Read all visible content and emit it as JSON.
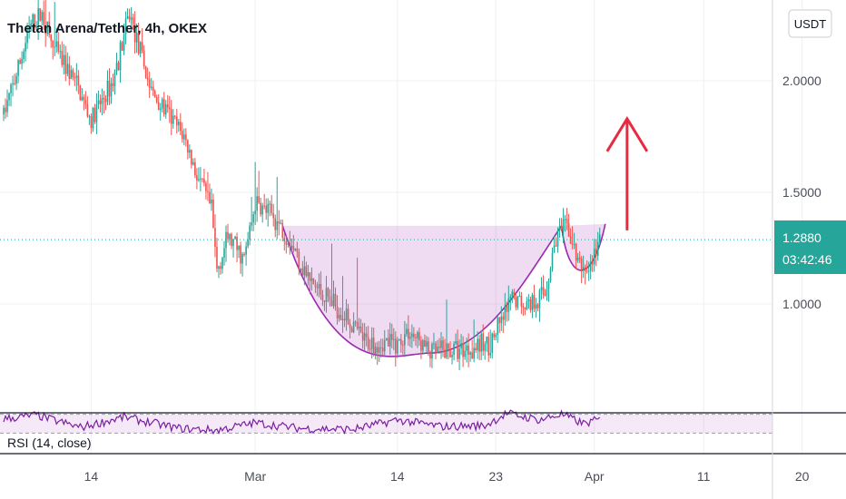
{
  "header": {
    "title": "Thetan Arena/Tether, 4h, OKEX"
  },
  "currency_button": {
    "label": "USDT"
  },
  "price_badge": {
    "price": "1.2880",
    "countdown": "03:42:46"
  },
  "rsi": {
    "label": "RSI (14, close)"
  },
  "colors": {
    "up": "#26a69a",
    "down": "#ef5350",
    "pattern": "#9c27b0",
    "arrow": "#e8293f",
    "badge": "#26a69a"
  },
  "chart_data": {
    "type": "candlestick",
    "title": "Thetan Arena/Tether, 4h, OKEX",
    "ylim": [
      0.5,
      2.5
    ],
    "y_ticks": [
      "2.0000",
      "1.5000",
      "1.0000"
    ],
    "y_tick_values": [
      2.0,
      1.5,
      1.0
    ],
    "x_ticks": [
      "14",
      "Mar",
      "14",
      "23",
      "Apr",
      "11",
      "20"
    ],
    "x_tick_dates": [
      "2022-02-14",
      "2022-03-01",
      "2022-03-14",
      "2022-03-23",
      "2022-04-01",
      "2022-04-11",
      "2022-04-20"
    ],
    "x_start": "2022-02-06T00:00",
    "last_price": 1.288,
    "price_keypoints": [
      {
        "t": "2022-02-06T00:00",
        "p": 1.85
      },
      {
        "t": "2022-02-07T00:00",
        "p": 2.0
      },
      {
        "t": "2022-02-08T12:00",
        "p": 2.25
      },
      {
        "t": "2022-02-09T12:00",
        "p": 2.3
      },
      {
        "t": "2022-02-10T12:00",
        "p": 2.15
      },
      {
        "t": "2022-02-12T12:00",
        "p": 2.0
      },
      {
        "t": "2022-02-14T00:00",
        "p": 1.82
      },
      {
        "t": "2022-02-16T00:00",
        "p": 2.0
      },
      {
        "t": "2022-02-17T12:00",
        "p": 2.3
      },
      {
        "t": "2022-02-19T12:00",
        "p": 1.95
      },
      {
        "t": "2022-02-21T00:00",
        "p": 1.85
      },
      {
        "t": "2022-02-22T12:00",
        "p": 1.75
      },
      {
        "t": "2022-02-23T12:00",
        "p": 1.6
      },
      {
        "t": "2022-02-25T00:00",
        "p": 1.42
      },
      {
        "t": "2022-02-25T12:00",
        "p": 1.15
      },
      {
        "t": "2022-02-26T12:00",
        "p": 1.3
      },
      {
        "t": "2022-02-28T00:00",
        "p": 1.2
      },
      {
        "t": "2022-03-01T00:00",
        "p": 1.45
      },
      {
        "t": "2022-03-02T12:00",
        "p": 1.4
      },
      {
        "t": "2022-03-04T00:00",
        "p": 1.3
      },
      {
        "t": "2022-03-06T00:00",
        "p": 1.1
      },
      {
        "t": "2022-03-09T00:00",
        "p": 0.96
      },
      {
        "t": "2022-03-11T00:00",
        "p": 0.83
      },
      {
        "t": "2022-03-14T00:00",
        "p": 0.82
      },
      {
        "t": "2022-03-15T00:00",
        "p": 0.88
      },
      {
        "t": "2022-03-17T00:00",
        "p": 0.78
      },
      {
        "t": "2022-03-20T00:00",
        "p": 0.8
      },
      {
        "t": "2022-03-22T12:00",
        "p": 0.82
      },
      {
        "t": "2022-03-23T12:00",
        "p": 0.92
      },
      {
        "t": "2022-03-24T12:00",
        "p": 1.02
      },
      {
        "t": "2022-03-26T00:00",
        "p": 1.0
      },
      {
        "t": "2022-03-27T12:00",
        "p": 1.05
      },
      {
        "t": "2022-03-28T12:00",
        "p": 1.3
      },
      {
        "t": "2022-03-29T12:00",
        "p": 1.35
      },
      {
        "t": "2022-03-30T12:00",
        "p": 1.18
      },
      {
        "t": "2022-03-31T12:00",
        "p": 1.15
      },
      {
        "t": "2022-04-01T12:00",
        "p": 1.288
      }
    ],
    "annotations": {
      "cup_rim_price": 1.35,
      "cup_bottom_price": 0.78,
      "cup_bottom_t": "2022-03-17T00:00",
      "cup_start_t": "2022-03-03T12:00",
      "cup_end_t": "2022-03-29T00:00",
      "handle_end_t": "2022-04-02T00:00",
      "handle_bottom_price": 1.14,
      "arrow": {
        "t": "2022-04-04T00:00",
        "from": 1.33,
        "to": 1.83,
        "direction": "up"
      }
    },
    "rsi_ylim": [
      0,
      100
    ],
    "rsi_band": [
      30,
      70
    ],
    "rsi_keypoints": [
      {
        "t": "2022-02-06T00:00",
        "v": 60
      },
      {
        "t": "2022-02-09T00:00",
        "v": 68
      },
      {
        "t": "2022-02-13T00:00",
        "v": 42
      },
      {
        "t": "2022-02-17T00:00",
        "v": 64
      },
      {
        "t": "2022-02-22T00:00",
        "v": 40
      },
      {
        "t": "2022-02-25T12:00",
        "v": 36
      },
      {
        "t": "2022-03-01T00:00",
        "v": 52
      },
      {
        "t": "2022-03-05T00:00",
        "v": 40
      },
      {
        "t": "2022-03-10T00:00",
        "v": 38
      },
      {
        "t": "2022-03-14T00:00",
        "v": 58
      },
      {
        "t": "2022-03-18T00:00",
        "v": 44
      },
      {
        "t": "2022-03-22T00:00",
        "v": 46
      },
      {
        "t": "2022-03-24T00:00",
        "v": 72
      },
      {
        "t": "2022-03-27T00:00",
        "v": 58
      },
      {
        "t": "2022-03-29T00:00",
        "v": 70
      },
      {
        "t": "2022-03-31T00:00",
        "v": 50
      },
      {
        "t": "2022-04-02T00:00",
        "v": 62
      }
    ]
  }
}
